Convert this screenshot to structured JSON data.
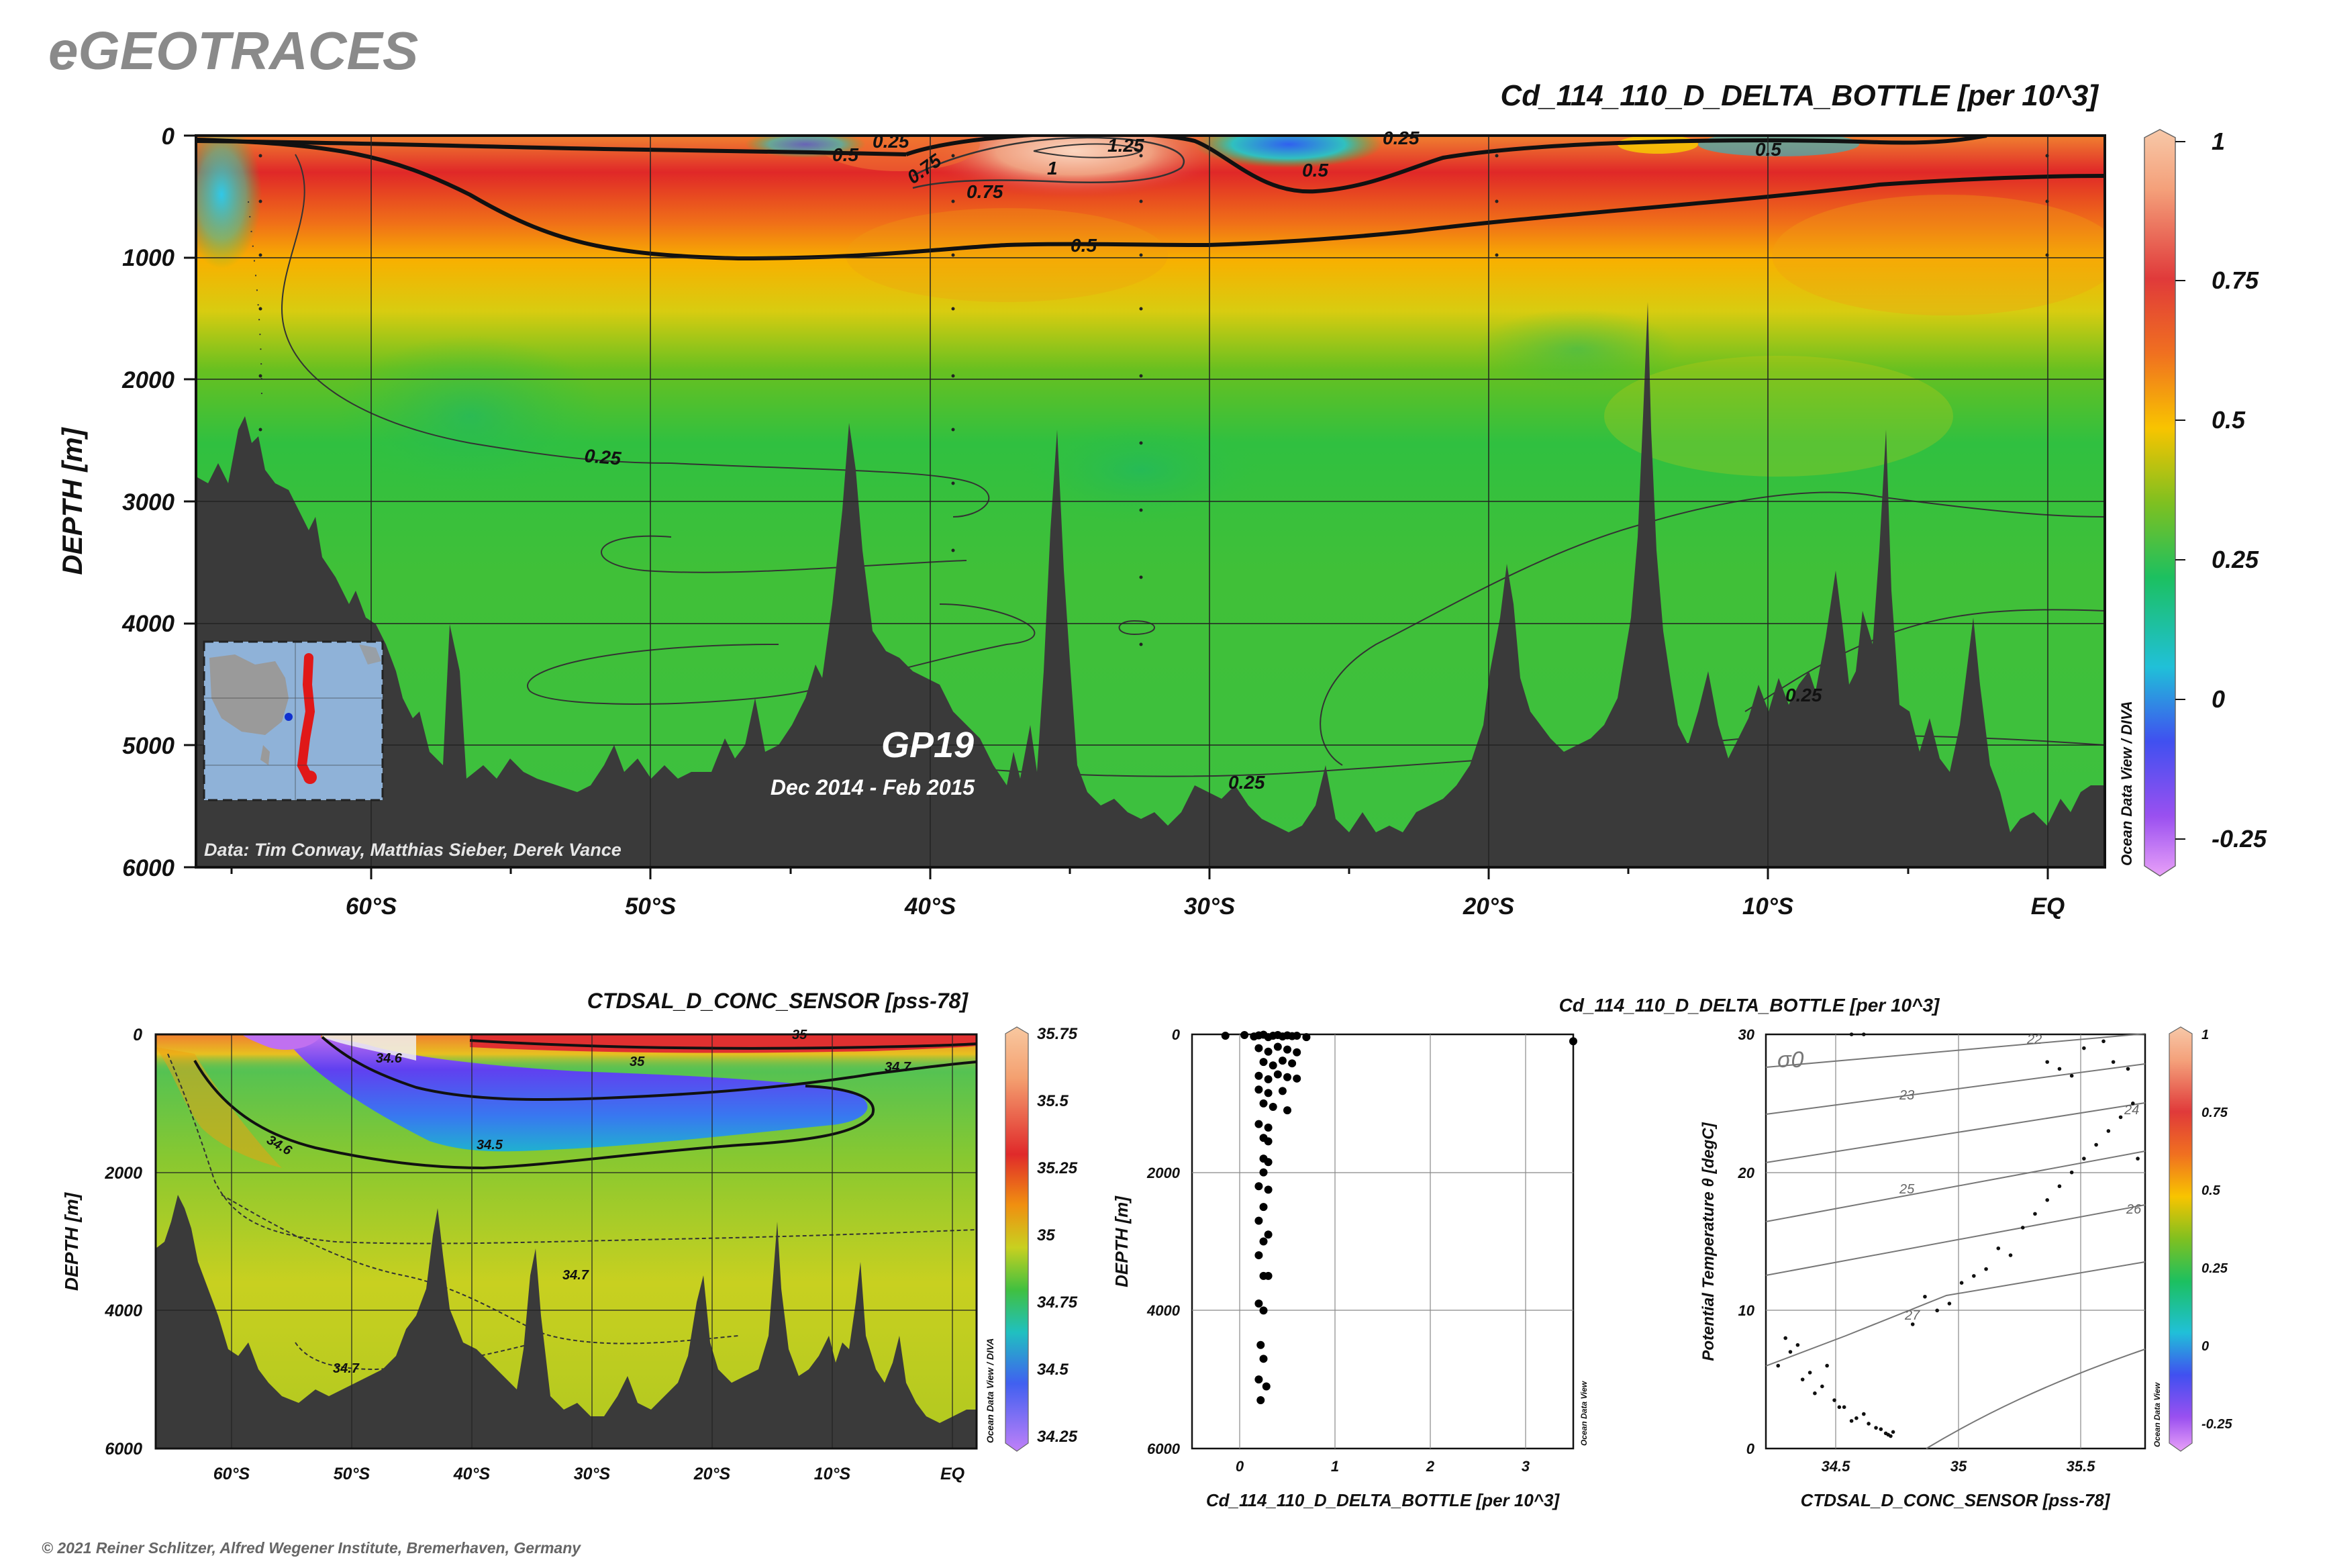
{
  "brand": "eGEOTRACES",
  "copyright": "© 2021 Reiner Schlitzer, Alfred Wegener Institute, Bremerhaven, Germany",
  "chart_data": [
    {
      "type": "heatmap",
      "kind": "section",
      "title": "Cd_114_110_D_DELTA_BOTTLE [per 10^3]",
      "ylabel": "DEPTH [m]",
      "xlabel": "",
      "xlim": [
        -66.5,
        2
      ],
      "ylim": [
        0,
        6000
      ],
      "x_ticks": [
        -60,
        -50,
        -40,
        -30,
        -20,
        -10,
        0
      ],
      "x_tick_labels": [
        "60°S",
        "50°S",
        "40°S",
        "30°S",
        "20°S",
        "10°S",
        "EQ"
      ],
      "y_ticks": [
        0,
        1000,
        2000,
        3000,
        4000,
        5000,
        6000
      ],
      "y_tick_labels": [
        "0",
        "1000",
        "2000",
        "3000",
        "4000",
        "5000",
        "6000"
      ],
      "grid": true,
      "cruise": "GP19",
      "period": "Dec 2014 - Feb 2015",
      "credit": "Data: Tim Conway, Matthias Sieber, Derek Vance",
      "software": "Ocean Data View / DIVA",
      "colorbar": {
        "ticks": [
          1,
          0.75,
          0.5,
          0.25,
          0,
          -0.25
        ],
        "tick_labels": [
          "1",
          "0.75",
          "0.5",
          "0.25",
          "0",
          "-0.25"
        ],
        "min": -0.3,
        "max": 1.05
      },
      "contour_labels": [
        "0.25",
        "0.5",
        "0.75",
        "1",
        "1.25"
      ]
    },
    {
      "type": "heatmap",
      "kind": "section",
      "title": "CTDSAL_D_CONC_SENSOR [pss-78]",
      "ylabel": "DEPTH [m]",
      "xlim": [
        -66.5,
        2
      ],
      "ylim": [
        0,
        6000
      ],
      "x_tick_labels": [
        "60°S",
        "50°S",
        "40°S",
        "30°S",
        "20°S",
        "10°S",
        "EQ"
      ],
      "y_tick_labels": [
        "0",
        "2000",
        "4000",
        "6000"
      ],
      "grid": true,
      "software": "Ocean Data View / DIVA",
      "colorbar": {
        "tick_labels": [
          "35.75",
          "35.5",
          "35.25",
          "35",
          "34.75",
          "34.5",
          "34.25"
        ],
        "min": 34.2,
        "max": 35.8
      },
      "contour_labels": [
        "34.6",
        "35",
        "34.7",
        "34.6",
        "34.5",
        "34.7",
        "34.7",
        "35"
      ]
    },
    {
      "type": "scatter",
      "xlabel": "Cd_114_110_D_DELTA_BOTTLE [per 10^3]",
      "ylabel": "DEPTH [m]",
      "xlim": [
        -0.5,
        3.5
      ],
      "ylim": [
        0,
        6000
      ],
      "x_tick_labels": [
        "0",
        "1",
        "2",
        "3"
      ],
      "y_tick_labels": [
        "0",
        "2000",
        "4000",
        "6000"
      ],
      "grid": true,
      "software": "Ocean Data View",
      "x": [
        -0.15,
        0.05,
        0.15,
        0.2,
        0.25,
        0.3,
        0.35,
        0.4,
        0.45,
        0.5,
        0.55,
        0.6,
        0.7,
        3.5,
        0.2,
        0.3,
        0.4,
        0.5,
        0.6,
        0.25,
        0.35,
        0.45,
        0.55,
        0.2,
        0.3,
        0.4,
        0.5,
        0.6,
        0.2,
        0.3,
        0.45,
        0.25,
        0.35,
        0.5,
        0.2,
        0.3,
        0.25,
        0.3,
        0.25,
        0.3,
        0.25,
        0.2,
        0.3,
        0.25,
        0.2,
        0.3,
        0.25,
        0.2,
        0.25,
        0.3,
        0.2,
        0.25,
        0.22,
        0.25,
        0.2,
        0.28,
        0.22
      ],
      "y": [
        20,
        10,
        30,
        15,
        5,
        40,
        20,
        10,
        30,
        15,
        25,
        20,
        40,
        100,
        200,
        250,
        180,
        220,
        260,
        400,
        450,
        380,
        420,
        600,
        650,
        580,
        620,
        640,
        800,
        850,
        820,
        1000,
        1050,
        1100,
        1300,
        1350,
        1500,
        1550,
        1800,
        1850,
        2000,
        2200,
        2250,
        2500,
        2700,
        2900,
        3000,
        3200,
        3500,
        3500,
        3900,
        4000,
        4500,
        4700,
        5000,
        5100,
        5300
      ]
    },
    {
      "type": "scatter",
      "kind": "property-property",
      "title": "Cd_114_110_D_DELTA_BOTTLE [per 10^3]",
      "xlabel": "CTDSAL_D_CONC_SENSOR [pss-78]",
      "ylabel": "Potential Temperature θ [degC]",
      "xlim": [
        34.2,
        35.75
      ],
      "ylim": [
        0,
        30
      ],
      "x_tick_labels": [
        "34.5",
        "35",
        "35.5"
      ],
      "y_tick_labels": [
        "0",
        "10",
        "20",
        "30"
      ],
      "grid": true,
      "isopycnal_symbol": "σ0",
      "isopycnal_labels": [
        "22",
        "23",
        "24",
        "25",
        "26",
        "27"
      ],
      "software": "Ocean Data View",
      "colorbar": {
        "tick_labels": [
          "1",
          "0.75",
          "0.5",
          "0.25",
          "0",
          "-0.25"
        ],
        "min": -0.3,
        "max": 1.05
      },
      "x": [
        34.25,
        34.3,
        34.35,
        34.4,
        34.45,
        34.5,
        34.55,
        34.6,
        34.65,
        34.7,
        34.72,
        34.28,
        34.33,
        34.38,
        34.43,
        34.48,
        34.52,
        34.57,
        34.62,
        34.67,
        34.69,
        34.71,
        34.8,
        34.9,
        35.0,
        35.1,
        35.2,
        34.85,
        34.95,
        35.05,
        35.15,
        35.25,
        35.3,
        35.35,
        35.4,
        35.45,
        35.5,
        35.55,
        35.6,
        35.65,
        35.7,
        35.72,
        35.35,
        35.4,
        35.45,
        35.5,
        34.55,
        34.6,
        35.58,
        35.62,
        35.68
      ],
      "y": [
        6,
        7,
        5,
        4,
        6,
        3,
        2,
        2.5,
        1.5,
        1,
        1.2,
        8,
        7.5,
        5.5,
        4.5,
        3.5,
        3,
        2.2,
        1.8,
        1.4,
        1.1,
        0.9,
        9,
        10,
        12,
        13,
        14,
        11,
        10.5,
        12.5,
        14.5,
        16,
        17,
        18,
        19,
        20,
        21,
        22,
        23,
        24,
        25,
        21,
        28,
        27.5,
        27,
        29,
        30,
        30,
        29.5,
        28,
        27.5
      ]
    }
  ]
}
